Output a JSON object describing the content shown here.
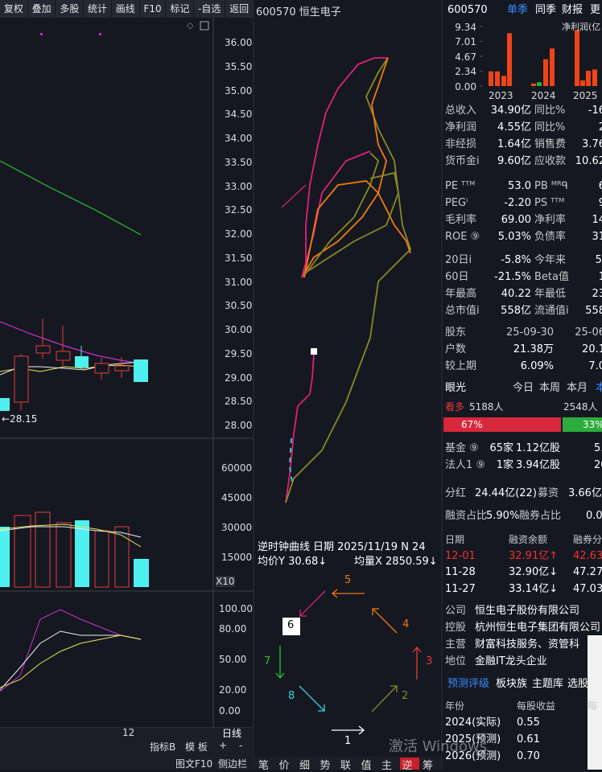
{
  "toolbar": [
    "复权",
    "叠加",
    "多股",
    "统计",
    "画线",
    "F10",
    "标记",
    "-自选",
    "返回"
  ],
  "title": "600570 恒生电子",
  "price_axis": [
    "36.00",
    "35.50",
    "35.00",
    "34.50",
    "34.00",
    "33.50",
    "33.00",
    "32.50",
    "32.00",
    "31.50",
    "31.00",
    "30.50",
    "30.00",
    "29.50",
    "29.00",
    "28.50",
    "28.00"
  ],
  "low_label": "←28.15",
  "volume_axis": [
    "60000",
    "45000",
    "30000",
    "15000"
  ],
  "volume_unit": "X10",
  "indicator_axis": [
    "100.00",
    "80.00",
    "50.00",
    "20.00",
    "0.00"
  ],
  "date_label": "12",
  "period": "日线",
  "bottom_buttons": [
    "指标B",
    "模 板",
    "+",
    "-"
  ],
  "footer_buttons": [
    "图文F10",
    "侧边栏"
  ],
  "curve": {
    "title": "逆时钟曲线",
    "date": "日期 2025/11/19 N 24",
    "avg_price": "均价Y 30.68↓",
    "avg_volume": "均量X 2850.59↓",
    "arrow_labels": [
      "1",
      "2",
      "3",
      "4",
      "5",
      "6",
      "7",
      "8"
    ]
  },
  "tabs": [
    "笔",
    "价",
    "细",
    "势",
    "联",
    "值",
    "主",
    "逆",
    "筹"
  ],
  "watermark": "激活 Windows",
  "side": {
    "code": "600570",
    "tabs": [
      "单季",
      "同季",
      "财报",
      "更"
    ],
    "mini_legend": "净利润(亿",
    "mini_ylim": [
      0,
      9.34
    ],
    "mini_ticks": [
      9.34,
      7.01,
      4.67,
      2.34,
      {
        "value": 0,
        "label": "0.00"
      }
    ],
    "mini_years": [
      "2023",
      "2024",
      "2025"
    ],
    "mini_bars": {
      "values": [
        2.3,
        2.3,
        1.6,
        8.3,
        0.4,
        0.6,
        4.2,
        5.9,
        8.8,
        0.9,
        2.4,
        2.6
      ],
      "colors": [
        "#ee4418",
        "#ee4418",
        "#ee4418",
        "#ee4418",
        "#ee4418",
        "#22b33c",
        "#ee4418",
        "#ee4418",
        "#ee4418",
        "#ee4418",
        "#ee4418",
        "#ee4418"
      ]
    },
    "finance": [
      [
        "总收入",
        "34.90亿",
        "同比%",
        "-16"
      ],
      [
        "净利润",
        "4.55亿",
        "同比%",
        "2"
      ],
      [
        "非经损",
        "1.64亿",
        "销售费",
        "3.76"
      ],
      [
        "货币金i",
        "9.60亿",
        "应收款",
        "10.62"
      ]
    ],
    "valuation": [
      [
        "PE ᵀᵀᴹ",
        "53.0",
        "PB ᴹᴿᑫ",
        "6"
      ],
      [
        "PEGⁱ",
        "-2.20",
        "PS ᵀᵀᴹ",
        "9"
      ],
      [
        "毛利率",
        "69.00",
        "净利率",
        "14"
      ],
      [
        "ROE ⑨",
        "5.03%",
        "负债率",
        "31"
      ]
    ],
    "returns": [
      [
        "20日i",
        "-5.8%",
        "今年来",
        "5."
      ],
      [
        "60日",
        "-21.5%",
        "Beta值",
        "1"
      ],
      [
        "年最高",
        "40.22",
        "年最低",
        "23"
      ],
      [
        "总市值i",
        "558亿",
        "流通值i",
        "558"
      ]
    ],
    "holders": [
      [
        "股东",
        "25-09-30",
        "25-06"
      ],
      [
        "户数",
        "21.38万",
        "20.1"
      ],
      [
        "较上期",
        "6.09%",
        "7.0"
      ]
    ],
    "view_header": [
      "眼光",
      "今日",
      "本周",
      "本月",
      "本"
    ],
    "view_counts": [
      "看多",
      "5188人",
      "2548人"
    ],
    "view_ratio": [
      "67%",
      "33%"
    ],
    "institutions": [
      [
        "基金 ⑨",
        "65家",
        "1.12亿股",
        "5."
      ],
      [
        "法人1 ⑨",
        "1家",
        "3.94亿股",
        "20."
      ]
    ],
    "dividend": [
      "分红",
      "24.44亿(22)",
      "募资",
      "3.66亿"
    ],
    "margin_ratio": [
      "融资占比",
      "5.90%",
      "融券占比",
      "0.0"
    ],
    "margin_table": [
      [
        "日期",
        "融资余额",
        "融券分"
      ],
      [
        "12-01",
        "32.91亿↑",
        "42.63"
      ],
      [
        "11-28",
        "32.90亿↓",
        "47.27"
      ],
      [
        "11-27",
        "33.14亿↓",
        "47.03"
      ]
    ],
    "profile": [
      [
        "公司",
        "恒生电子股份有限公司"
      ],
      [
        "控股",
        "杭州恒生电子集团有限公司"
      ],
      [
        "主营",
        "财富科技服务、资管科"
      ],
      [
        "地位",
        "金融IT龙头企业"
      ]
    ],
    "forecast_tabs": [
      "预测评级",
      "板块族",
      "主题库",
      "选股"
    ],
    "forecast": [
      [
        "年份",
        "每股收益",
        "每"
      ],
      [
        "2024(实际)",
        "0.55"
      ],
      [
        "2025(预测)",
        "0.61"
      ],
      [
        "2026(预测)",
        "0.70"
      ]
    ]
  }
}
